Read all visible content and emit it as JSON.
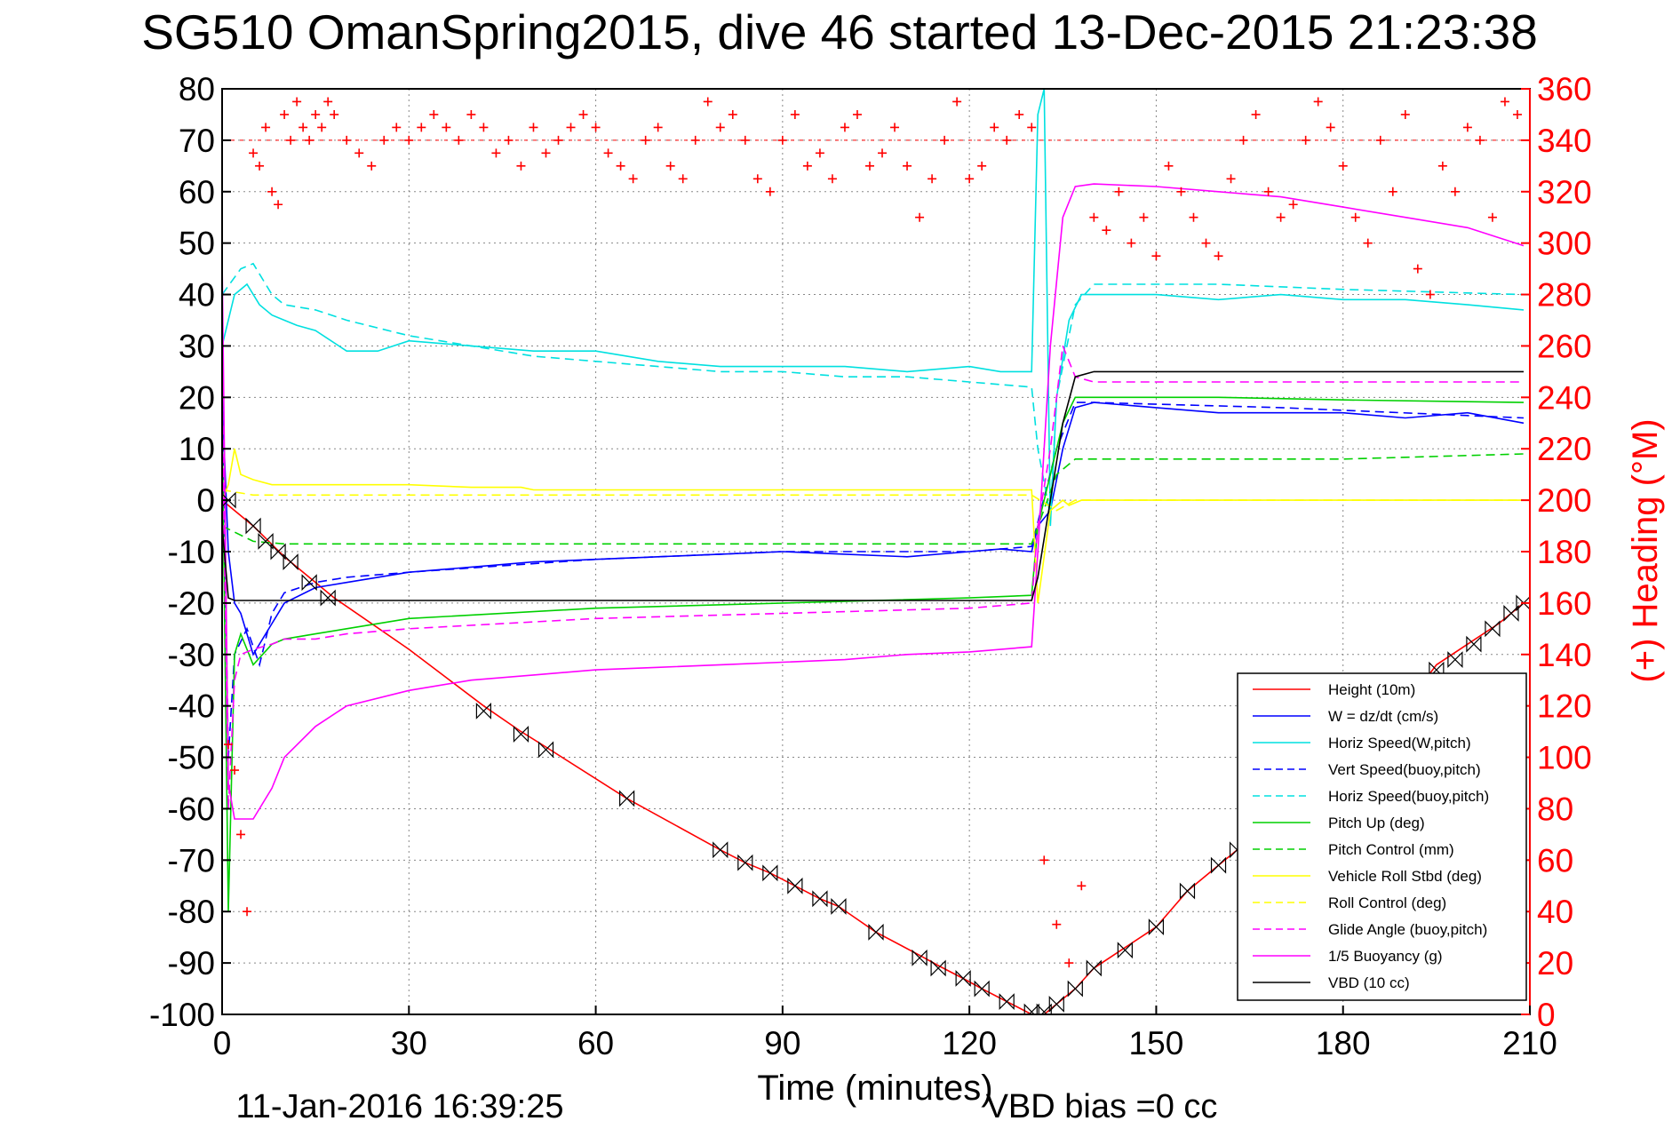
{
  "chart_data": {
    "type": "line",
    "title": "SG510 OmanSpring2015, dive 46 started 13-Dec-2015 21:23:38",
    "xlabel": "Time (minutes)",
    "ylabel_right": "(+) Heading (°M)",
    "footer_left": "11-Jan-2016 16:39:25",
    "footer_right": "VBD bias =0 cc",
    "xlim": [
      0,
      210
    ],
    "ylim": [
      -100,
      80
    ],
    "ylim_right": [
      0,
      360
    ],
    "xticks": [
      "0",
      "30",
      "60",
      "90",
      "120",
      "150",
      "180",
      "210"
    ],
    "yticks": [
      "80",
      "70",
      "60",
      "50",
      "40",
      "30",
      "20",
      "10",
      "0",
      "-10",
      "-20",
      "-30",
      "-40",
      "-50",
      "-60",
      "-70",
      "-80",
      "-90",
      "-100"
    ],
    "yticks_right": [
      "360",
      "340",
      "320",
      "300",
      "280",
      "260",
      "240",
      "220",
      "200",
      "180",
      "160",
      "140",
      "120",
      "100",
      "80",
      "60",
      "40",
      "20",
      "0"
    ],
    "grid": true,
    "legend_position": "bottom-right",
    "series": [
      {
        "name": "Height (10m)",
        "color": "#ff0000",
        "style": "solid",
        "x": [
          0,
          5,
          10,
          18,
          30,
          42,
          48,
          52,
          65,
          80,
          84,
          88,
          92,
          96,
          99,
          105,
          112,
          115,
          119,
          122,
          126,
          130,
          132,
          134,
          137,
          140,
          145,
          150,
          155,
          160,
          163,
          170,
          175,
          180,
          185,
          190,
          195,
          200,
          205,
          209
        ],
        "y": [
          0,
          -5,
          -11,
          -19,
          -29,
          -40,
          -45,
          -48,
          -58,
          -68,
          -70.5,
          -72.5,
          -75,
          -77.5,
          -79,
          -84,
          -88.5,
          -90.5,
          -93,
          -95,
          -97.5,
          -100,
          -100,
          -98,
          -95,
          -91,
          -87,
          -83,
          -76,
          -71,
          -68,
          -62,
          -57,
          -52,
          -47,
          -40,
          -32,
          -28,
          -24,
          -20
        ]
      },
      {
        "name": "W = dz/dt (cm/s)",
        "color": "#0000ff",
        "style": "solid",
        "x": [
          0,
          1,
          2,
          3,
          5,
          8,
          10,
          15,
          20,
          30,
          40,
          50,
          60,
          70,
          80,
          90,
          100,
          110,
          120,
          125,
          130,
          131,
          133,
          135,
          137,
          140,
          150,
          160,
          170,
          180,
          190,
          200,
          209
        ],
        "y": [
          20,
          -10,
          -20,
          -22,
          -30,
          -24,
          -20,
          -17,
          -16,
          -14,
          -13,
          -12,
          -11.5,
          -11,
          -10.5,
          -10,
          -10.5,
          -11,
          -10,
          -9.5,
          -10,
          -5,
          -2,
          10,
          18,
          19,
          18,
          17,
          17,
          17,
          16,
          17,
          15
        ]
      },
      {
        "name": "Horiz Speed(W,pitch)",
        "color": "#00e0e0",
        "style": "solid",
        "x": [
          0,
          2,
          4,
          6,
          8,
          10,
          12,
          15,
          20,
          25,
          30,
          40,
          50,
          60,
          70,
          80,
          90,
          100,
          110,
          120,
          125,
          130,
          131,
          132,
          133,
          134,
          136,
          138,
          140,
          150,
          160,
          170,
          180,
          190,
          200,
          209
        ],
        "y": [
          30,
          40,
          42,
          38,
          36,
          35,
          34,
          33,
          29,
          29,
          31,
          30,
          29,
          29,
          27,
          26,
          26,
          26,
          25,
          26,
          25,
          25,
          75,
          80,
          -5,
          20,
          35,
          40,
          40,
          40,
          39,
          40,
          39,
          39,
          38,
          37
        ]
      },
      {
        "name": "Vert Speed(buoy,pitch)",
        "color": "#0000ff",
        "style": "dash",
        "x": [
          0,
          1,
          2,
          4,
          6,
          8,
          10,
          15,
          20,
          30,
          60,
          90,
          120,
          130,
          134,
          137,
          140,
          170,
          209
        ],
        "y": [
          25,
          -50,
          -30,
          -25,
          -32,
          -22,
          -18,
          -16,
          -15,
          -14,
          -11.5,
          -10,
          -10,
          -9,
          10,
          19,
          19,
          18,
          16
        ]
      },
      {
        "name": "Horiz Speed(buoy,pitch)",
        "color": "#00e0e0",
        "style": "dash",
        "x": [
          0,
          3,
          5,
          8,
          10,
          15,
          20,
          30,
          40,
          50,
          60,
          70,
          80,
          90,
          100,
          110,
          120,
          130,
          131,
          133,
          134,
          137,
          140,
          160,
          180,
          209
        ],
        "y": [
          40,
          45,
          46,
          40,
          38,
          37,
          35,
          32,
          30,
          28,
          27,
          26,
          25,
          25,
          24,
          24,
          23,
          22,
          10,
          -3,
          20,
          38,
          42,
          42,
          41,
          40
        ]
      },
      {
        "name": "Pitch Up (deg)",
        "color": "#00d000",
        "style": "solid",
        "x": [
          0,
          1,
          2,
          3,
          5,
          8,
          10,
          15,
          20,
          30,
          60,
          90,
          120,
          130,
          131,
          133,
          135,
          137,
          140,
          160,
          180,
          209
        ],
        "y": [
          15,
          -80,
          -30,
          -26,
          -32,
          -28,
          -27,
          -26,
          -25,
          -23,
          -21,
          -20,
          -19,
          -18.5,
          -5,
          5,
          15,
          20,
          20,
          20,
          19.5,
          19
        ]
      },
      {
        "name": "Pitch Control (mm)",
        "color": "#00d000",
        "style": "dash",
        "x": [
          0,
          5,
          10,
          20,
          30,
          60,
          90,
          120,
          130,
          134,
          137,
          140,
          160,
          180,
          209
        ],
        "y": [
          -5,
          -8,
          -8.5,
          -8.5,
          -8.5,
          -8.5,
          -8.5,
          -8.5,
          -8.5,
          5,
          8,
          8,
          8,
          8,
          9
        ]
      },
      {
        "name": "Vehicle Roll Stbd (deg)",
        "color": "#ffff00",
        "style": "solid",
        "x": [
          0,
          1,
          2,
          3,
          5,
          8,
          10,
          15,
          20,
          30,
          40,
          48,
          50,
          60,
          80,
          90,
          100,
          110,
          120,
          130,
          131,
          133,
          135,
          136,
          138,
          140,
          150,
          160,
          170,
          180,
          190,
          200,
          209
        ],
        "y": [
          0,
          3,
          10,
          5,
          4,
          3,
          3,
          3,
          3,
          3,
          2.5,
          2.5,
          2,
          2,
          2,
          2,
          2,
          2,
          2,
          2,
          -20,
          -2,
          0,
          -1,
          0,
          0,
          0,
          0,
          0,
          0,
          0,
          0,
          0
        ]
      },
      {
        "name": "Roll Control (deg)",
        "color": "#ffff00",
        "style": "dash",
        "x": [
          0,
          5,
          10,
          20,
          40,
          48,
          60,
          90,
          120,
          130,
          134,
          137,
          140,
          160,
          180,
          209
        ],
        "y": [
          2,
          1,
          1,
          1,
          1,
          1,
          1,
          1,
          1,
          1,
          -2,
          0,
          0,
          0,
          0,
          0
        ]
      },
      {
        "name": "Glide Angle (buoy,pitch)",
        "color": "#ff00ff",
        "style": "dash",
        "x": [
          0,
          1,
          2,
          3,
          5,
          8,
          10,
          15,
          20,
          30,
          60,
          90,
          120,
          130,
          131,
          133,
          135,
          137,
          140,
          160,
          180,
          209
        ],
        "y": [
          20,
          -60,
          -35,
          -30,
          -29,
          -28,
          -27,
          -27,
          -26,
          -25,
          -23,
          -22,
          -21,
          -20,
          -5,
          10,
          30,
          24,
          23,
          23,
          23,
          23
        ]
      },
      {
        "name": "1/5 Buoyancy (g)",
        "color": "#ff00ff",
        "style": "solid",
        "x": [
          0,
          1,
          2,
          3,
          5,
          8,
          10,
          15,
          20,
          30,
          40,
          50,
          60,
          70,
          80,
          90,
          100,
          110,
          120,
          130,
          131,
          133,
          135,
          137,
          140,
          150,
          160,
          170,
          180,
          190,
          200,
          209
        ],
        "y": [
          47,
          -55,
          -62,
          -62,
          -62,
          -56,
          -50,
          -44,
          -40,
          -37,
          -35,
          -34,
          -33,
          -32.5,
          -32,
          -31.5,
          -31,
          -30,
          -29.5,
          -28.5,
          -10,
          30,
          55,
          61,
          61.5,
          61,
          60,
          59,
          57,
          55,
          53,
          49.5
        ]
      },
      {
        "name": "VBD (10 cc)",
        "color": "#000000",
        "style": "solid",
        "x": [
          0,
          1,
          2,
          5,
          20,
          60,
          100,
          130,
          131,
          133,
          135,
          137,
          140,
          170,
          209
        ],
        "y": [
          -5,
          -19,
          -19.5,
          -19.5,
          -19.5,
          -19.5,
          -19.5,
          -19.5,
          -15,
          0,
          15,
          24,
          25,
          25,
          25
        ]
      }
    ],
    "heading_series": {
      "name": "(+) Heading",
      "color": "#ff0000",
      "marker": "+",
      "x": [
        1,
        2,
        3,
        4,
        5,
        6,
        7,
        8,
        9,
        10,
        11,
        12,
        13,
        14,
        15,
        16,
        17,
        18,
        20,
        22,
        24,
        26,
        28,
        30,
        32,
        34,
        36,
        38,
        40,
        42,
        44,
        46,
        48,
        50,
        52,
        54,
        56,
        58,
        60,
        62,
        64,
        66,
        68,
        70,
        72,
        74,
        76,
        78,
        80,
        82,
        84,
        86,
        88,
        90,
        92,
        94,
        96,
        98,
        100,
        102,
        104,
        106,
        108,
        110,
        112,
        114,
        116,
        118,
        120,
        122,
        124,
        126,
        128,
        130,
        132,
        134,
        136,
        138,
        140,
        142,
        144,
        146,
        148,
        150,
        152,
        154,
        156,
        158,
        160,
        162,
        164,
        166,
        168,
        170,
        172,
        174,
        176,
        178,
        180,
        182,
        184,
        186,
        188,
        190,
        192,
        194,
        196,
        198,
        200,
        202,
        204,
        206,
        208
      ],
      "y": [
        105,
        95,
        70,
        40,
        335,
        330,
        345,
        320,
        315,
        350,
        340,
        355,
        345,
        340,
        350,
        345,
        355,
        350,
        340,
        335,
        330,
        340,
        345,
        340,
        345,
        350,
        345,
        340,
        350,
        345,
        335,
        340,
        330,
        345,
        335,
        340,
        345,
        350,
        345,
        335,
        330,
        325,
        340,
        345,
        330,
        325,
        340,
        355,
        345,
        350,
        340,
        325,
        320,
        340,
        350,
        330,
        335,
        325,
        345,
        350,
        330,
        335,
        345,
        330,
        310,
        325,
        340,
        355,
        325,
        330,
        345,
        340,
        350,
        345,
        60,
        35,
        20,
        50,
        310,
        305,
        320,
        300,
        310,
        295,
        330,
        320,
        310,
        300,
        295,
        325,
        340,
        350,
        320,
        310,
        315,
        340,
        355,
        345,
        330,
        310,
        300,
        340,
        320,
        350,
        290,
        280,
        330,
        320,
        345,
        340,
        310,
        355,
        350
      ]
    },
    "diamond_markers": {
      "x": [
        1,
        5,
        7,
        9,
        11,
        14,
        17,
        42,
        48,
        52,
        65,
        80,
        84,
        88,
        92,
        96,
        99,
        105,
        112,
        115,
        119,
        122,
        126,
        130,
        132,
        134,
        137,
        140,
        145,
        150,
        155,
        160,
        163,
        195,
        198,
        201,
        204,
        207,
        209
      ],
      "y": [
        0,
        -5,
        -8,
        -10,
        -12,
        -16,
        -19,
        -41,
        -45.5,
        -48.5,
        -58,
        -68,
        -70.5,
        -72.5,
        -75,
        -77.5,
        -79,
        -84,
        -89,
        -91,
        -93,
        -95,
        -97.5,
        -99.5,
        -99.5,
        -98,
        -95,
        -91,
        -87.5,
        -83,
        -76,
        -71,
        -68,
        -33,
        -31,
        -28,
        -25,
        -22,
        -20
      ]
    }
  }
}
